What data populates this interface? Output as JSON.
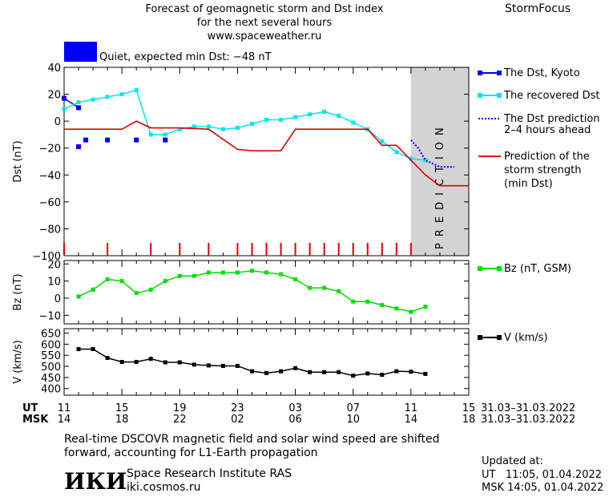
{
  "header": {
    "title_line1": "Forecast of geomagnetic storm and Dst index",
    "title_line2": "for the next several hours",
    "url": "www.spaceweather.ru",
    "brand": "StormFocus"
  },
  "status": {
    "text": "Quiet, expected min Dst: −48 nT",
    "color": "#0000ff"
  },
  "prediction_label": "PREDICTION",
  "legend": {
    "dst_kyoto": "The Dst, Kyoto",
    "recovered": "The recovered Dst",
    "pred_line1": "The Dst prediction",
    "pred_line2": "2–4 hours ahead",
    "storm_line1": "Prediction of the",
    "storm_line2": "storm strength",
    "storm_line3": "(min Dst)",
    "bz": "Bz (nT, GSM)",
    "v": "V (km/s)"
  },
  "time_axis": {
    "ut_label": "UT",
    "msk_label": "MSK",
    "ut_ticks": [
      "11",
      "15",
      "19",
      "23",
      "03",
      "07",
      "11",
      "15"
    ],
    "msk_ticks": [
      "14",
      "18",
      "22",
      "02",
      "06",
      "10",
      "14",
      "18"
    ],
    "ut_range": "31.03–31.03.2022",
    "msk_range": "31.03–31.03.2022"
  },
  "footer": {
    "note_line1": "Real-time DSCOVR magnetic field and solar wind speed are shifted",
    "note_line2": "forward, accounting for L1-Earth propagation",
    "logo": "ИКИ",
    "institute": "Space Research Institute RAS",
    "site": "iki.cosmos.ru",
    "updated_label": "Updated at:",
    "updated_ut": "UT   11:05, 01.04.2022",
    "updated_msk": "MSK 14:05, 01.04.2022"
  },
  "chart_data": [
    {
      "type": "line",
      "ylabel": "Dst (nT)",
      "xlabel": "UT hours",
      "xlim": [
        11,
        39
      ],
      "ylim": [
        -100,
        40
      ],
      "yticks": [
        40,
        20,
        0,
        -20,
        -40,
        -60,
        -80,
        -100
      ],
      "prediction_from_x": 35,
      "series": [
        {
          "name": "The Dst, Kyoto",
          "color": "#0000ff",
          "style": "squares",
          "points": [
            [
              12,
              -19
            ],
            [
              12.5,
              -14
            ],
            [
              14,
              -14
            ],
            [
              16,
              -14
            ],
            [
              18,
              -14
            ],
            [
              11,
              17
            ],
            [
              12,
              10
            ]
          ]
        },
        {
          "name": "The recovered Dst",
          "color": "#00e5ee",
          "style": "line-dots",
          "points": [
            [
              11,
              9
            ],
            [
              12,
              14
            ],
            [
              13,
              16
            ],
            [
              14,
              18
            ],
            [
              15,
              20
            ],
            [
              16,
              23
            ],
            [
              17,
              -10
            ],
            [
              18,
              -10
            ],
            [
              19,
              -6
            ],
            [
              20,
              -4
            ],
            [
              21,
              -4
            ],
            [
              22,
              -6
            ],
            [
              23,
              -5
            ],
            [
              24,
              -2
            ],
            [
              25,
              1
            ],
            [
              26,
              1
            ],
            [
              27,
              3
            ],
            [
              28,
              5
            ],
            [
              29,
              7
            ],
            [
              30,
              4
            ],
            [
              31,
              -1
            ],
            [
              32,
              -6
            ],
            [
              33,
              -15
            ],
            [
              34,
              -23
            ],
            [
              35,
              -28
            ],
            [
              36,
              -29
            ]
          ]
        },
        {
          "name": "The Dst prediction 2–4 hours ahead",
          "color": "#0000ff",
          "style": "dotted",
          "points": [
            [
              35,
              -14
            ],
            [
              35.5,
              -20
            ],
            [
              36,
              -29
            ],
            [
              37,
              -34
            ],
            [
              38,
              -34
            ]
          ]
        },
        {
          "name": "Prediction of the storm strength (min Dst)",
          "color": "#dd0000",
          "style": "line",
          "points": [
            [
              11,
              -6
            ],
            [
              15,
              -6
            ],
            [
              16,
              0
            ],
            [
              17,
              -5
            ],
            [
              19,
              -5
            ],
            [
              21,
              -6
            ],
            [
              23,
              -21
            ],
            [
              24,
              -22
            ],
            [
              26,
              -22
            ],
            [
              27,
              -6
            ],
            [
              32,
              -6
            ],
            [
              33,
              -18
            ],
            [
              34,
              -18
            ],
            [
              35,
              -29
            ],
            [
              36,
              -40
            ],
            [
              37,
              -48
            ],
            [
              39,
              -48
            ]
          ]
        }
      ],
      "markers": {
        "color": "#dd0000",
        "x": [
          11,
          14,
          17,
          19,
          21,
          23,
          24,
          25,
          26,
          27,
          28,
          29,
          30,
          31,
          32,
          33,
          34,
          35
        ]
      }
    },
    {
      "type": "line",
      "ylabel": "Bz (nT)",
      "xlim": [
        11,
        39
      ],
      "ylim": [
        -15,
        22
      ],
      "yticks": [
        20,
        10,
        0,
        -10
      ],
      "series": [
        {
          "name": "Bz (nT, GSM)",
          "color": "#00dd00",
          "points": [
            [
              12,
              1
            ],
            [
              13,
              5
            ],
            [
              14,
              11
            ],
            [
              15,
              10
            ],
            [
              16,
              3
            ],
            [
              17,
              5
            ],
            [
              18,
              10
            ],
            [
              19,
              13
            ],
            [
              20,
              13
            ],
            [
              21,
              15
            ],
            [
              22,
              15
            ],
            [
              23,
              15
            ],
            [
              24,
              16
            ],
            [
              25,
              15
            ],
            [
              26,
              14
            ],
            [
              27,
              11
            ],
            [
              28,
              6
            ],
            [
              29,
              6
            ],
            [
              30,
              4
            ],
            [
              31,
              -2
            ],
            [
              32,
              -2
            ],
            [
              33,
              -4
            ],
            [
              34,
              -6
            ],
            [
              35,
              -8
            ],
            [
              36,
              -5
            ]
          ]
        }
      ]
    },
    {
      "type": "line",
      "ylabel": "V (km/s)",
      "xlim": [
        11,
        39
      ],
      "ylim": [
        370,
        670
      ],
      "yticks": [
        650,
        600,
        550,
        500,
        450,
        400
      ],
      "series": [
        {
          "name": "V (km/s)",
          "color": "#000000",
          "points": [
            [
              12,
              578
            ],
            [
              13,
              578
            ],
            [
              14,
              538
            ],
            [
              15,
              520
            ],
            [
              16,
              520
            ],
            [
              17,
              534
            ],
            [
              18,
              518
            ],
            [
              19,
              518
            ],
            [
              20,
              508
            ],
            [
              21,
              504
            ],
            [
              22,
              502
            ],
            [
              23,
              502
            ],
            [
              24,
              478
            ],
            [
              25,
              470
            ],
            [
              26,
              478
            ],
            [
              27,
              492
            ],
            [
              28,
              474
            ],
            [
              29,
              474
            ],
            [
              30,
              474
            ],
            [
              31,
              458
            ],
            [
              32,
              468
            ],
            [
              33,
              462
            ],
            [
              34,
              478
            ],
            [
              35,
              476
            ],
            [
              36,
              466
            ]
          ]
        }
      ]
    }
  ]
}
